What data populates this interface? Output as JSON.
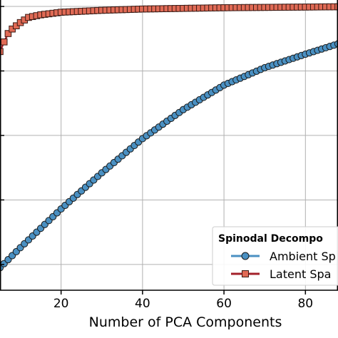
{
  "chart_data": {
    "type": "line",
    "xlabel": "Number of PCA Components",
    "ylabel": "",
    "xlim": [
      5,
      88
    ],
    "ylim": [
      0.56,
      1.01
    ],
    "grid": true,
    "x_ticks": [
      20,
      40,
      60,
      80
    ],
    "x_tick_labels": [
      "20",
      "40",
      "60",
      "80"
    ],
    "y_ticks": [
      0.6,
      0.7,
      0.8,
      0.9,
      1.0
    ],
    "legend": {
      "title": "Spinodal Decompo",
      "placement": "bottom-right",
      "entries": [
        "Ambient Sp",
        "Latent Spa"
      ]
    },
    "series": [
      {
        "name": "Ambient Sp",
        "marker": "circle",
        "color": "#4a90c2",
        "line_color": "#4a90c2",
        "x_range": [
          5,
          88
        ],
        "control_points": [
          [
            5,
            0.595
          ],
          [
            10,
            0.626
          ],
          [
            15,
            0.656
          ],
          [
            20,
            0.686
          ],
          [
            30,
            0.742
          ],
          [
            40,
            0.795
          ],
          [
            50,
            0.84
          ],
          [
            60,
            0.878
          ],
          [
            70,
            0.905
          ],
          [
            80,
            0.926
          ],
          [
            88,
            0.942
          ]
        ]
      },
      {
        "name": "Latent Spa",
        "marker": "square",
        "color": "#e06a55",
        "line_color": "#a3202a",
        "x_range": [
          5,
          88
        ],
        "control_points": [
          [
            5,
            0.93
          ],
          [
            6,
            0.945
          ],
          [
            7,
            0.958
          ],
          [
            8,
            0.965
          ],
          [
            10,
            0.975
          ],
          [
            12,
            0.983
          ],
          [
            15,
            0.987
          ],
          [
            20,
            0.991
          ],
          [
            30,
            0.994
          ],
          [
            40,
            0.996
          ],
          [
            60,
            0.998
          ],
          [
            88,
            0.9995
          ]
        ]
      }
    ]
  }
}
